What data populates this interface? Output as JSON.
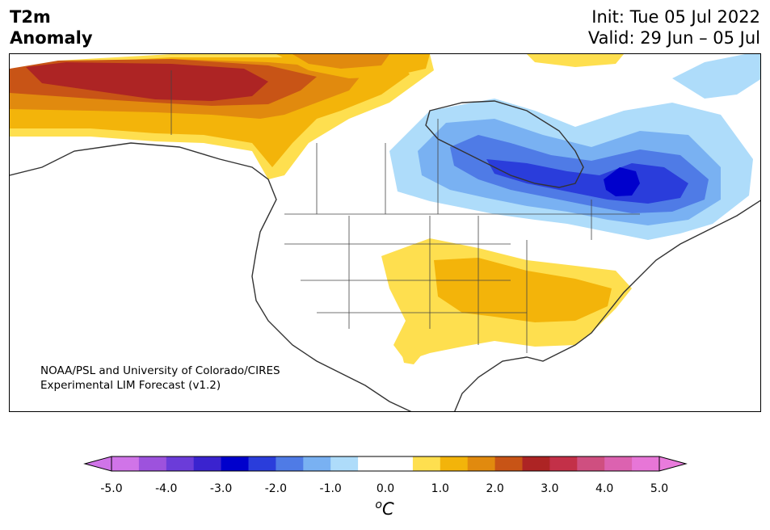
{
  "header": {
    "title_line1": "T2m",
    "title_line2": "Anomaly",
    "init": "Init: Tue 05 Jul 2022",
    "valid": "Valid: 29 Jun – 05 Jul"
  },
  "credit": {
    "line1": "NOAA/PSL and University of Colorado/CIRES",
    "line2": "Experimental LIM Forecast (v1.2)"
  },
  "colorbar": {
    "unit_base": "C",
    "unit_sup": "o",
    "ticks": [
      "-5.0",
      "-4.0",
      "-3.0",
      "-2.0",
      "-1.0",
      "0.0",
      "1.0",
      "2.0",
      "3.0",
      "4.0",
      "5.0"
    ],
    "colors": [
      "#d074e8",
      "#9d52dd",
      "#6b3cd9",
      "#3a23cf",
      "#0000cc",
      "#2a3ddb",
      "#4f7be6",
      "#79b1f2",
      "#aedcfa",
      "#ffffff",
      "#ffffff",
      "#fedf4f",
      "#f3b40a",
      "#e18a0e",
      "#c85416",
      "#ad2424",
      "#c33048",
      "#cf4f80",
      "#dc62b0",
      "#e776d7"
    ],
    "under_color": "#d074e8",
    "over_color": "#e97bdc"
  },
  "legend_colors": {
    "cold_light": "#aedcfa",
    "cold_mid": "#79b1f2",
    "cold_deep": "#2a3ddb",
    "cold_core": "#0000cc",
    "warm_light": "#fedf4f",
    "warm_mid": "#f3b40a",
    "warm_orange": "#e18a0e",
    "warm_dark": "#c85416",
    "warm_red": "#ad2424"
  }
}
